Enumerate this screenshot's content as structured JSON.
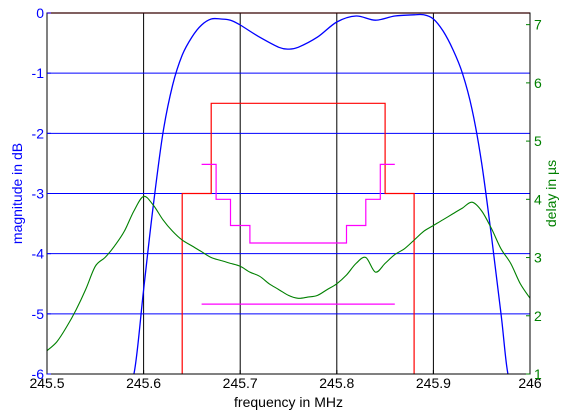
{
  "chart_data": {
    "type": "line",
    "xlabel": "frequency in MHz",
    "ylabel_left": "magnitude in dB",
    "ylabel_right": "delay in µs",
    "xlim": [
      245.5,
      246
    ],
    "ylim_left": [
      -6,
      0
    ],
    "ylim_right": [
      1,
      7.2
    ],
    "x_ticks": [
      245.5,
      245.6,
      245.7,
      245.8,
      245.9,
      246
    ],
    "x_tick_labels": [
      "245.5",
      "245.6",
      "245.7",
      "245.8",
      "245.9",
      "246"
    ],
    "y_left_ticks": [
      -6,
      -5,
      -4,
      -3,
      -2,
      -1,
      0
    ],
    "y_left_tick_labels": [
      "-6",
      "-5",
      "-4",
      "-3",
      "-2",
      "-1",
      "0"
    ],
    "y_right_ticks": [
      1,
      2,
      3,
      4,
      5,
      6,
      7
    ],
    "y_right_tick_labels": [
      "1",
      "2",
      "3",
      "4",
      "5",
      "6",
      "7"
    ],
    "grid": {
      "vertical_color": "#000000",
      "horizontal_color": "#0000ff"
    },
    "colors": {
      "magnitude": "#0000ff",
      "delay": "#008000",
      "magnitude_mask": "#ff0000",
      "delay_mask": "#ff00ff",
      "left_axis": "#0000ff",
      "right_axis": "#008000",
      "x_axis": "#000000"
    },
    "series": [
      {
        "axis": "left",
        "key": "magnitude",
        "x": [
          245.5,
          245.52,
          245.54,
          245.56,
          245.58,
          245.59,
          245.6,
          245.61,
          245.62,
          245.63,
          245.64,
          245.65,
          245.66,
          245.67,
          245.68,
          245.69,
          245.7,
          245.72,
          245.74,
          245.75,
          245.76,
          245.78,
          245.8,
          245.82,
          245.84,
          245.86,
          245.88,
          245.89,
          245.9,
          245.91,
          245.92,
          245.93,
          245.94,
          245.95,
          245.96,
          245.97,
          245.98,
          246
        ],
        "y": [
          -6.5,
          -6.4,
          -6.3,
          -6.2,
          -6.1,
          -6.0,
          -4.6,
          -3.2,
          -2.0,
          -1.2,
          -0.7,
          -0.4,
          -0.2,
          -0.1,
          -0.1,
          -0.12,
          -0.2,
          -0.4,
          -0.57,
          -0.6,
          -0.57,
          -0.4,
          -0.15,
          -0.05,
          -0.12,
          -0.05,
          -0.03,
          -0.03,
          -0.1,
          -0.3,
          -0.6,
          -1.0,
          -1.6,
          -2.5,
          -3.7,
          -5.0,
          -6.2,
          -6.5
        ]
      },
      {
        "axis": "right",
        "key": "delay",
        "x": [
          245.5,
          245.51,
          245.52,
          245.53,
          245.54,
          245.55,
          245.56,
          245.57,
          245.58,
          245.59,
          245.6,
          245.61,
          245.62,
          245.63,
          245.64,
          245.65,
          245.66,
          245.67,
          245.68,
          245.69,
          245.7,
          245.71,
          245.72,
          245.73,
          245.74,
          245.75,
          245.76,
          245.77,
          245.78,
          245.79,
          245.8,
          245.81,
          245.82,
          245.83,
          245.84,
          245.85,
          245.86,
          245.87,
          245.88,
          245.89,
          245.9,
          245.91,
          245.92,
          245.93,
          245.94,
          245.95,
          245.96,
          245.97,
          245.98,
          245.99,
          246
        ],
        "y": [
          1.4,
          1.55,
          1.8,
          2.1,
          2.45,
          2.85,
          3.0,
          3.2,
          3.45,
          3.8,
          4.05,
          3.9,
          3.65,
          3.45,
          3.3,
          3.2,
          3.1,
          3.0,
          2.95,
          2.9,
          2.85,
          2.75,
          2.68,
          2.55,
          2.45,
          2.35,
          2.3,
          2.32,
          2.35,
          2.45,
          2.55,
          2.7,
          2.9,
          3.0,
          2.75,
          2.9,
          3.05,
          3.15,
          3.3,
          3.45,
          3.55,
          3.65,
          3.75,
          3.85,
          3.95,
          3.8,
          3.5,
          3.15,
          2.9,
          2.55,
          2.3
        ]
      }
    ],
    "masks": [
      {
        "axis": "left",
        "key": "magnitude_mask",
        "polylines": [
          [
            [
              245.5,
              0
            ],
            [
              246,
              0
            ]
          ],
          [
            [
              245.64,
              -6
            ],
            [
              245.64,
              -3
            ],
            [
              245.67,
              -3
            ],
            [
              245.67,
              -1.5
            ],
            [
              245.85,
              -1.5
            ],
            [
              245.85,
              -3
            ],
            [
              245.88,
              -3
            ],
            [
              245.88,
              -6
            ]
          ]
        ]
      },
      {
        "axis": "right",
        "key": "delay_mask",
        "polylines": [
          [
            [
              245.66,
              4.6
            ],
            [
              245.675,
              4.6
            ],
            [
              245.675,
              4.0
            ],
            [
              245.69,
              4.0
            ],
            [
              245.69,
              3.55
            ],
            [
              245.71,
              3.55
            ],
            [
              245.71,
              3.25
            ],
            [
              245.81,
              3.25
            ],
            [
              245.81,
              3.55
            ],
            [
              245.83,
              3.55
            ],
            [
              245.83,
              4.0
            ],
            [
              245.845,
              4.0
            ],
            [
              245.845,
              4.6
            ],
            [
              245.86,
              4.6
            ]
          ],
          [
            [
              245.66,
              2.2
            ],
            [
              245.86,
              2.2
            ]
          ]
        ]
      }
    ]
  }
}
